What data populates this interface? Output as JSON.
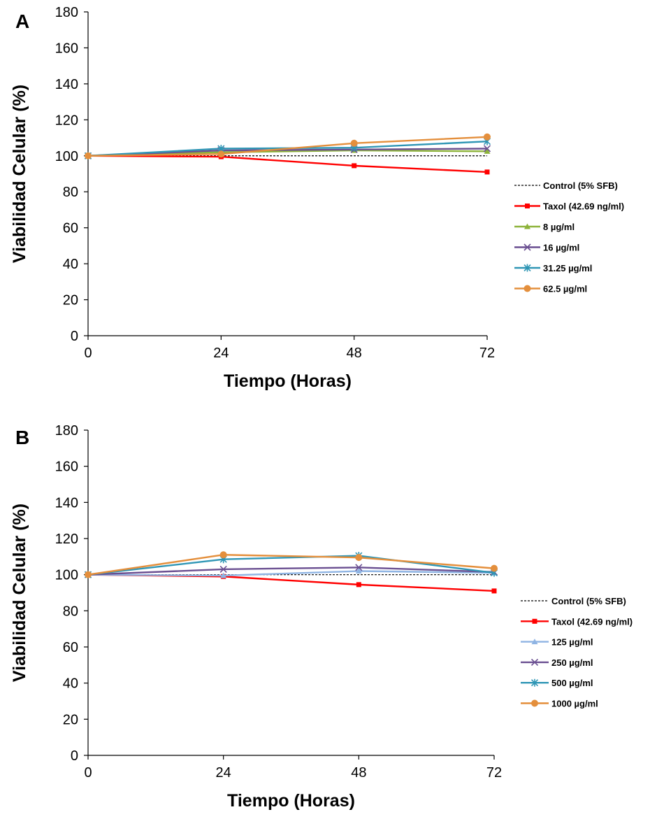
{
  "chart_data": [
    {
      "type": "line",
      "panel_label": "A",
      "xlabel": "Tiempo (Horas)",
      "ylabel": "Viabilidad Celular (%)",
      "x": [
        0,
        24,
        48,
        72
      ],
      "xticks": [
        "0",
        "24",
        "48",
        "72"
      ],
      "yticks": [
        "0",
        "20",
        "40",
        "60",
        "80",
        "100",
        "120",
        "140",
        "160",
        "180"
      ],
      "xlim": [
        0,
        72
      ],
      "ylim": [
        0,
        180
      ],
      "grid": false,
      "legend": "right",
      "series": [
        {
          "name": "Control (5% SFB)",
          "values": [
            100,
            100,
            100,
            100
          ],
          "color": "#000000",
          "dashed": true,
          "marker": "none"
        },
        {
          "name": "Taxol  (42.69 ng/ml)",
          "values": [
            100,
            99.5,
            94.5,
            91
          ],
          "color": "#ff0000",
          "marker": "square"
        },
        {
          "name": "8 µg/ml",
          "values": [
            100,
            102,
            103,
            102.5
          ],
          "color": "#8db33a",
          "marker": "triangle"
        },
        {
          "name": "16 µg/ml",
          "values": [
            100,
            103,
            103.5,
            104
          ],
          "color": "#6a4f91",
          "marker": "x"
        },
        {
          "name": "31.25 µg/ml",
          "values": [
            100,
            104,
            104.5,
            108
          ],
          "color": "#2f96b5",
          "marker": "star"
        },
        {
          "name": "62.5 µg/ml",
          "values": [
            100,
            101,
            107,
            110.5
          ],
          "color": "#e48f3c",
          "marker": "circle"
        }
      ]
    },
    {
      "type": "line",
      "panel_label": "B",
      "xlabel": "Tiempo (Horas)",
      "ylabel": "Viabilidad Celular (%)",
      "x": [
        0,
        24,
        48,
        72
      ],
      "xticks": [
        "0",
        "24",
        "48",
        "72"
      ],
      "yticks": [
        "0",
        "20",
        "40",
        "60",
        "80",
        "100",
        "120",
        "140",
        "160",
        "180"
      ],
      "xlim": [
        0,
        72
      ],
      "ylim": [
        0,
        180
      ],
      "grid": false,
      "legend": "right",
      "series": [
        {
          "name": "Control (5% SFB)",
          "values": [
            100,
            100,
            100,
            100
          ],
          "color": "#000000",
          "dashed": true,
          "marker": "none"
        },
        {
          "name": "Taxol  (42.69 ng/ml)",
          "values": [
            100,
            99,
            94.5,
            91
          ],
          "color": "#ff0000",
          "marker": "square"
        },
        {
          "name": "125 µg/ml",
          "values": [
            100,
            99.5,
            102,
            101
          ],
          "color": "#8fb4e3",
          "marker": "triangle"
        },
        {
          "name": "250 µg/ml",
          "values": [
            100,
            103,
            104,
            101.5
          ],
          "color": "#6a4f91",
          "marker": "x"
        },
        {
          "name": "500 µg/ml",
          "values": [
            100,
            108.5,
            110.5,
            101
          ],
          "color": "#2f96b5",
          "marker": "star"
        },
        {
          "name": "1000 µg/ml",
          "values": [
            100,
            111,
            109.5,
            103.5
          ],
          "color": "#e48f3c",
          "marker": "circle"
        }
      ]
    }
  ]
}
